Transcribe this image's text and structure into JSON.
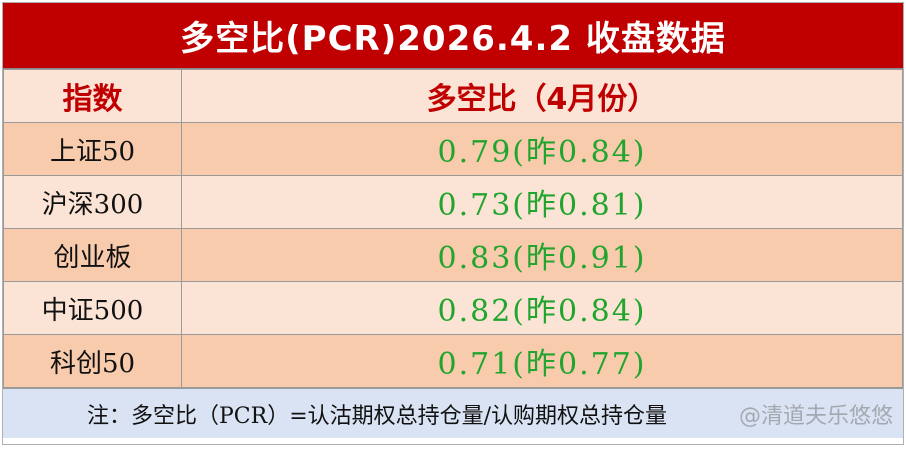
{
  "title": "多空比(PCR)2026.4.2 收盘数据",
  "header": {
    "index_col": "指数",
    "value_col": "多空比（4月份）"
  },
  "rows": [
    {
      "index": "上证50",
      "value": "0.79(昨0.84)"
    },
    {
      "index": "沪深300",
      "value": "0.73(昨0.81)"
    },
    {
      "index": "创业板",
      "value": "0.83(昨0.91)"
    },
    {
      "index": "中证500",
      "value": "0.82(昨0.84)"
    },
    {
      "index": "科创50",
      "value": "0.71(昨0.77)"
    }
  ],
  "note": "注：多空比（PCR）=认沽期权总持仓量/认购期权总持仓量",
  "watermark": "@清道夫乐悠悠",
  "colors": {
    "title_bg": "#c00000",
    "header_text": "#c00000",
    "value_text": "#22a52e",
    "row_dark": "#f8cbad",
    "row_light": "#fbe4d5",
    "note_bg": "#dae3f3"
  }
}
